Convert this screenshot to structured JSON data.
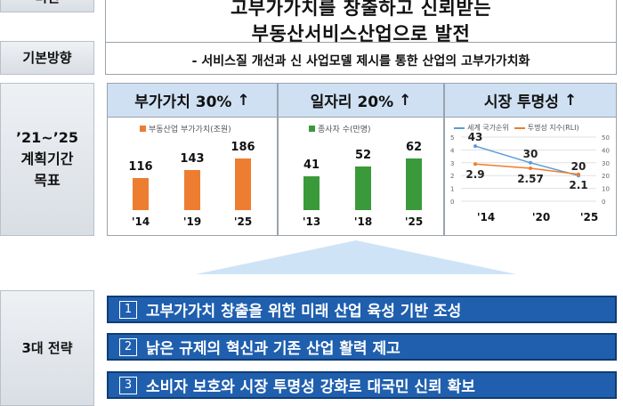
{
  "vision": {
    "label": "비전",
    "title_line1": "고부가가치를 창출하고 신뢰받는",
    "title_line2": "부동산서비스산업으로 발전"
  },
  "direction": {
    "label": "기본방향",
    "text": "- 서비스질 개선과 신 사업모델 제시를 통한 산업의 고부가가치화"
  },
  "goals": {
    "label_line1": "’21~’25",
    "label_line2": "계획기간",
    "label_line3": "목표",
    "panels": [
      {
        "title": "부가가치 30%",
        "arrow": "↑",
        "legend": "부동산업 부가가치(조원)",
        "color": "#ed7d31",
        "categories": [
          "'14",
          "'19",
          "'25"
        ],
        "values": [
          116,
          143,
          186
        ]
      },
      {
        "title": "일자리 20%",
        "arrow": "↑",
        "legend": "종사자 수(만명)",
        "color": "#3a9a3a",
        "categories": [
          "'13",
          "'18",
          "'25"
        ],
        "values": [
          41,
          52,
          62
        ]
      },
      {
        "title": "시장 투명성",
        "arrow": "↑",
        "legend_a": "세계 국가순위",
        "legend_b": "투명성 지수(RLI)",
        "color_a": "#5b9bd5",
        "color_b": "#ed7d31",
        "categories": [
          "'14",
          "'20",
          "'25"
        ],
        "rank_values": [
          43,
          30,
          20
        ],
        "index_values": [
          2.9,
          2.57,
          2.1
        ],
        "left_ticks": [
          "5",
          "4",
          "3",
          "2",
          "1",
          "0"
        ],
        "right_ticks": [
          "50",
          "40",
          "30",
          "20",
          "10",
          "0"
        ]
      }
    ]
  },
  "strategy": {
    "label": "3대 전략",
    "items": [
      {
        "num": "1",
        "text": "고부가가치 창출을 위한 미래 산업 육성 기반 조성"
      },
      {
        "num": "2",
        "text": "낡은 규제의 혁신과 기존 산업 활력 제고"
      },
      {
        "num": "3",
        "text": "소비자 보호와 시장 투명성 강화로 대국민 신뢰 확보"
      }
    ]
  }
}
